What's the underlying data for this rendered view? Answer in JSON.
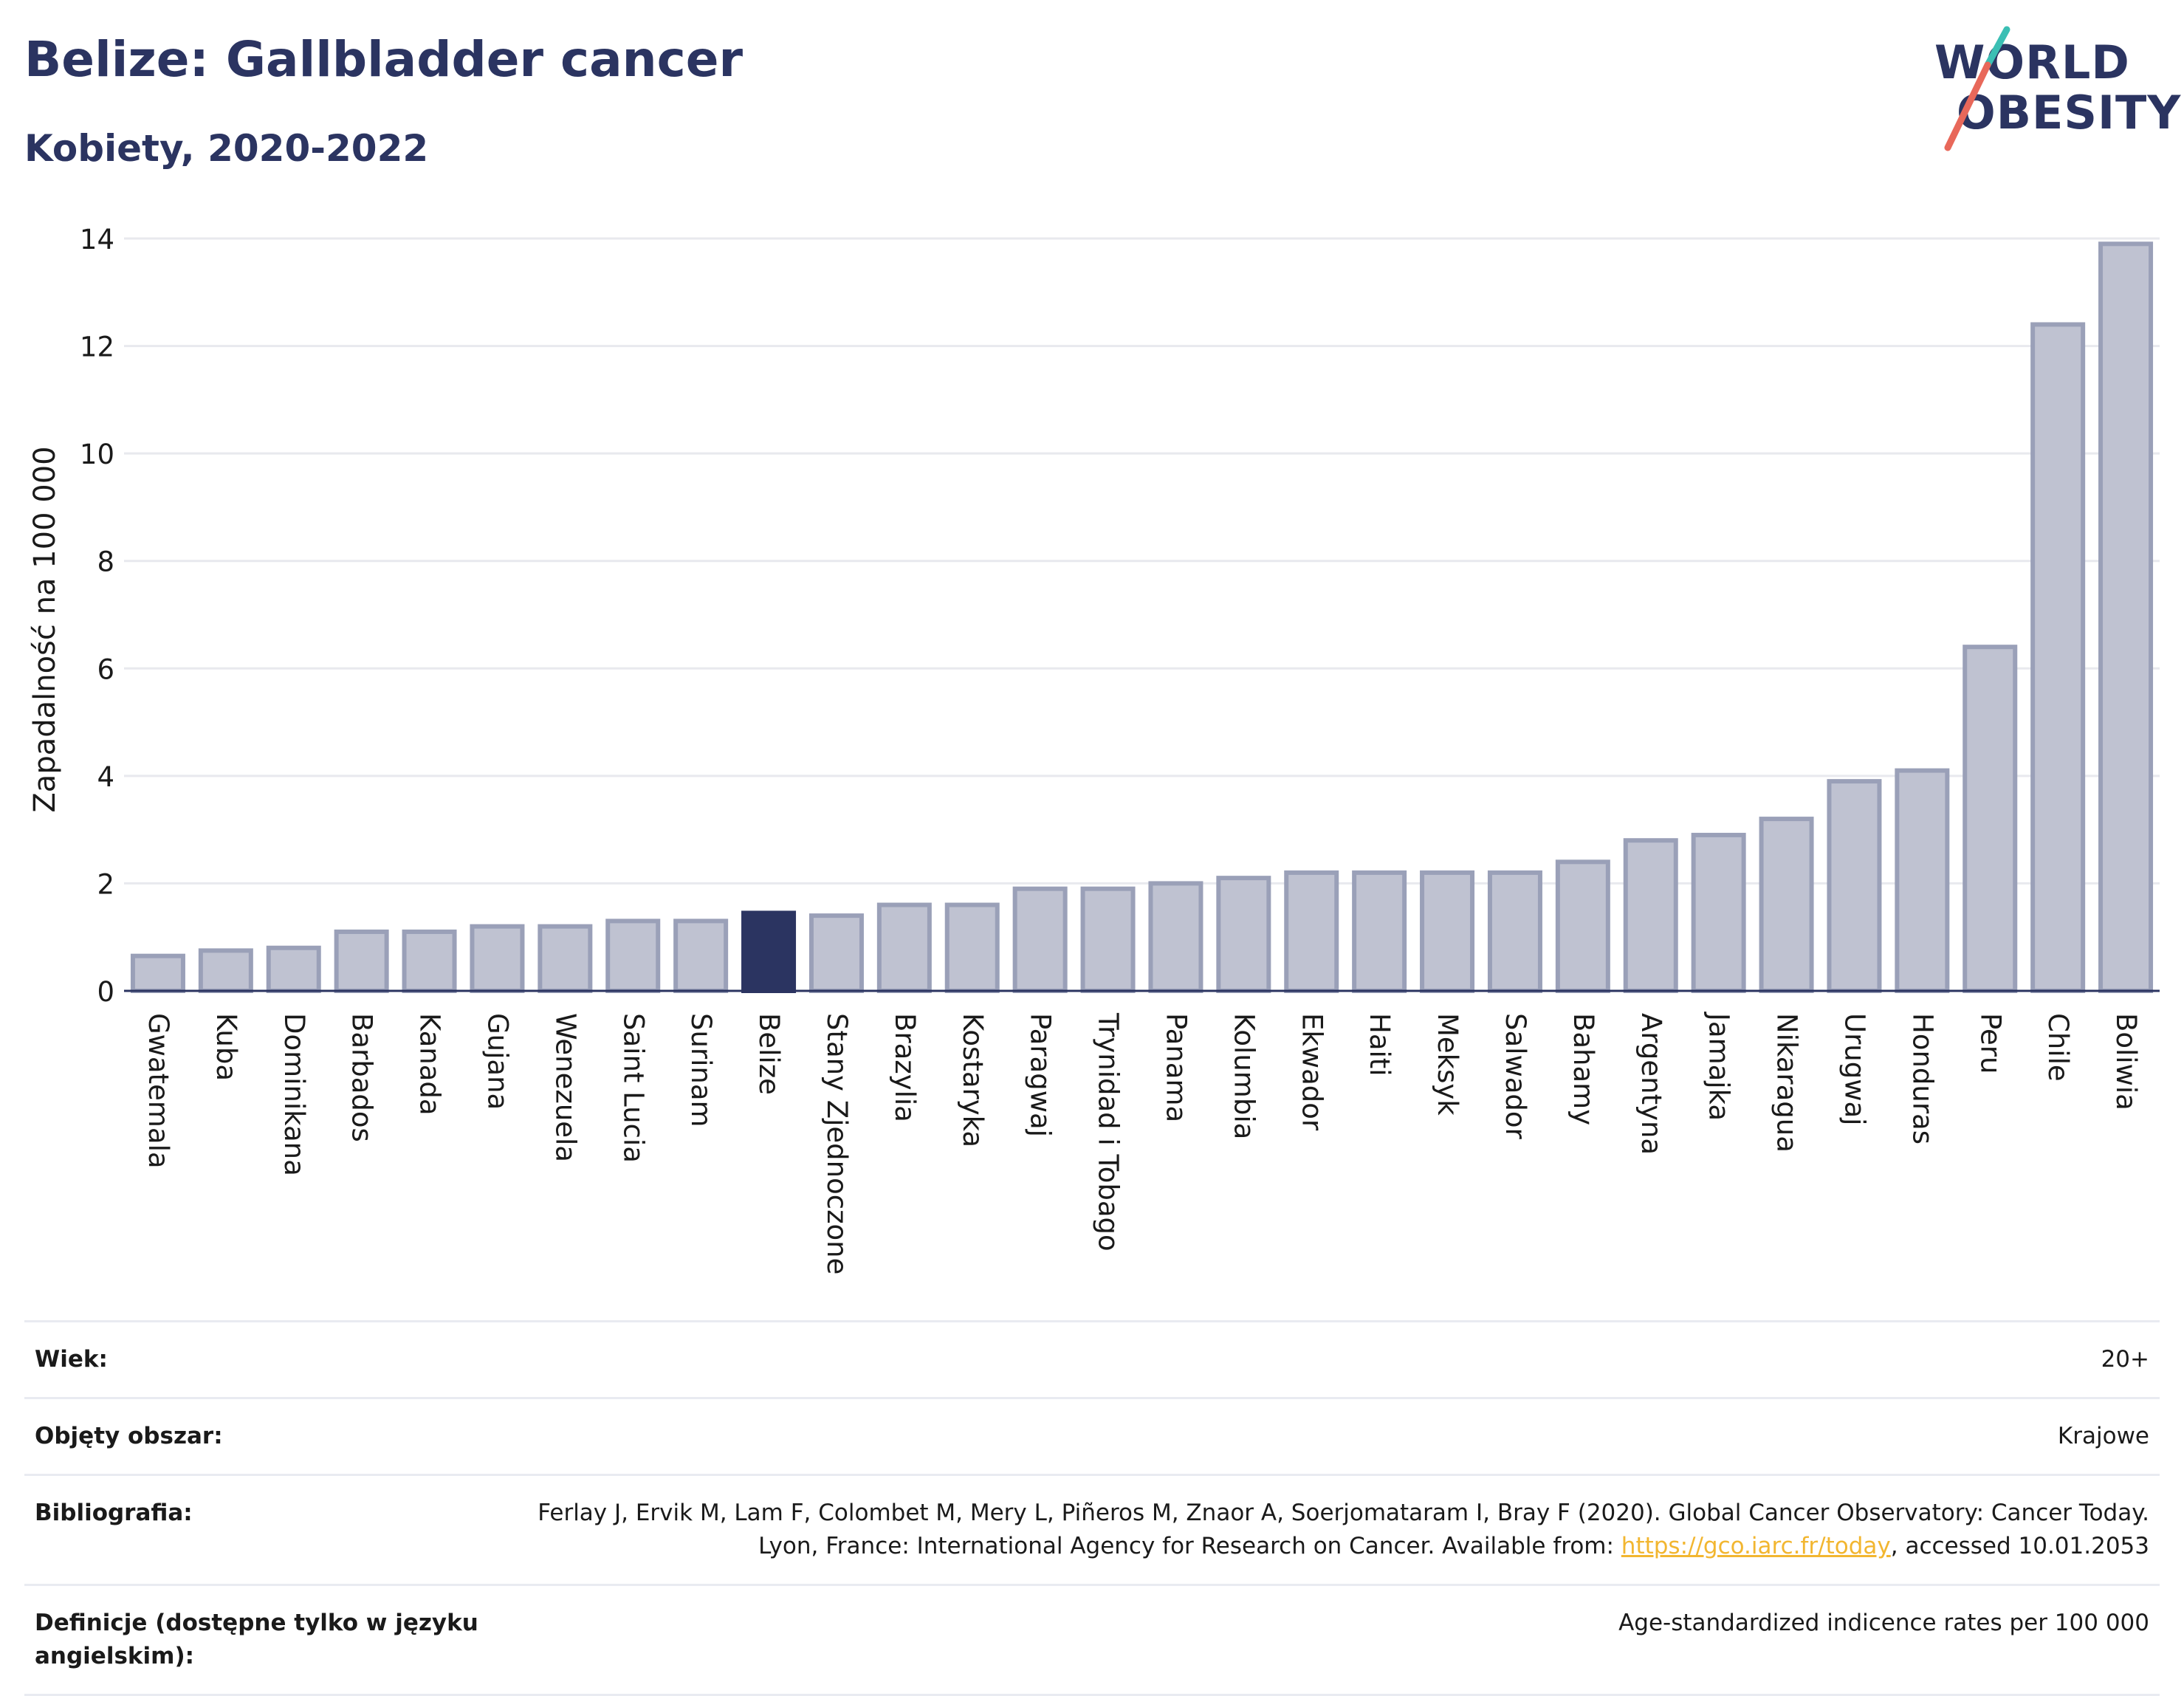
{
  "header": {
    "title": "Belize: Gallbladder cancer",
    "subtitle": "Kobiety, 2020-2022"
  },
  "logo": {
    "line1": "WORLD",
    "line2": "OBESITY",
    "accent_colors": [
      "#3bbfb4",
      "#e8685a"
    ]
  },
  "colors": {
    "bar_default": "#bfc2d1",
    "bar_border": "#9aa0b8",
    "bar_highlight": "#2b3461",
    "text_primary": "#2b3461"
  },
  "chart_data": {
    "type": "bar",
    "ylabel": "Zapadalność na 100 000",
    "ylim": [
      0,
      14
    ],
    "yticks": [
      0,
      2,
      4,
      6,
      8,
      10,
      12,
      14
    ],
    "grid": true,
    "highlight": "Belize",
    "categories": [
      "Gwatemala",
      "Kuba",
      "Dominikana",
      "Barbados",
      "Kanada",
      "Gujana",
      "Wenezuela",
      "Saint Lucia",
      "Surinam",
      "Belize",
      "Stany Zjednoczone",
      "Brazylia",
      "Kostaryka",
      "Paragwaj",
      "Trynidad i Tobago",
      "Panama",
      "Kolumbia",
      "Ekwador",
      "Haiti",
      "Meksyk",
      "Salwador",
      "Bahamy",
      "Argentyna",
      "Jamajka",
      "Nikaragua",
      "Urugwaj",
      "Honduras",
      "Peru",
      "Chile",
      "Boliwia"
    ],
    "values": [
      0.65,
      0.75,
      0.8,
      1.1,
      1.1,
      1.2,
      1.2,
      1.3,
      1.3,
      1.45,
      1.4,
      1.6,
      1.6,
      1.9,
      1.9,
      2.0,
      2.1,
      2.2,
      2.2,
      2.2,
      2.2,
      2.4,
      2.8,
      2.9,
      3.2,
      3.9,
      4.1,
      6.4,
      12.4,
      13.9
    ]
  },
  "info": {
    "age_label": "Wiek:",
    "age_value": "20+",
    "area_label": "Objęty obszar:",
    "area_value": "Krajowe",
    "biblio_label": "Bibliografia:",
    "biblio_text_1": "Ferlay J, Ervik M, Lam F, Colombet M, Mery L, Piñeros M, Znaor A, Soerjomataram I, Bray F (2020). Global Cancer Observatory: Cancer Today. Lyon, France: International Agency for Research on Cancer. Available from: ",
    "biblio_link": "https://gco.iarc.fr/today",
    "biblio_text_2": ", accessed 10.01.2053",
    "def_label": "Definicje (dostępne tylko w języku angielskim):",
    "def_value": "Age-standardized indicence rates per 100 000"
  }
}
